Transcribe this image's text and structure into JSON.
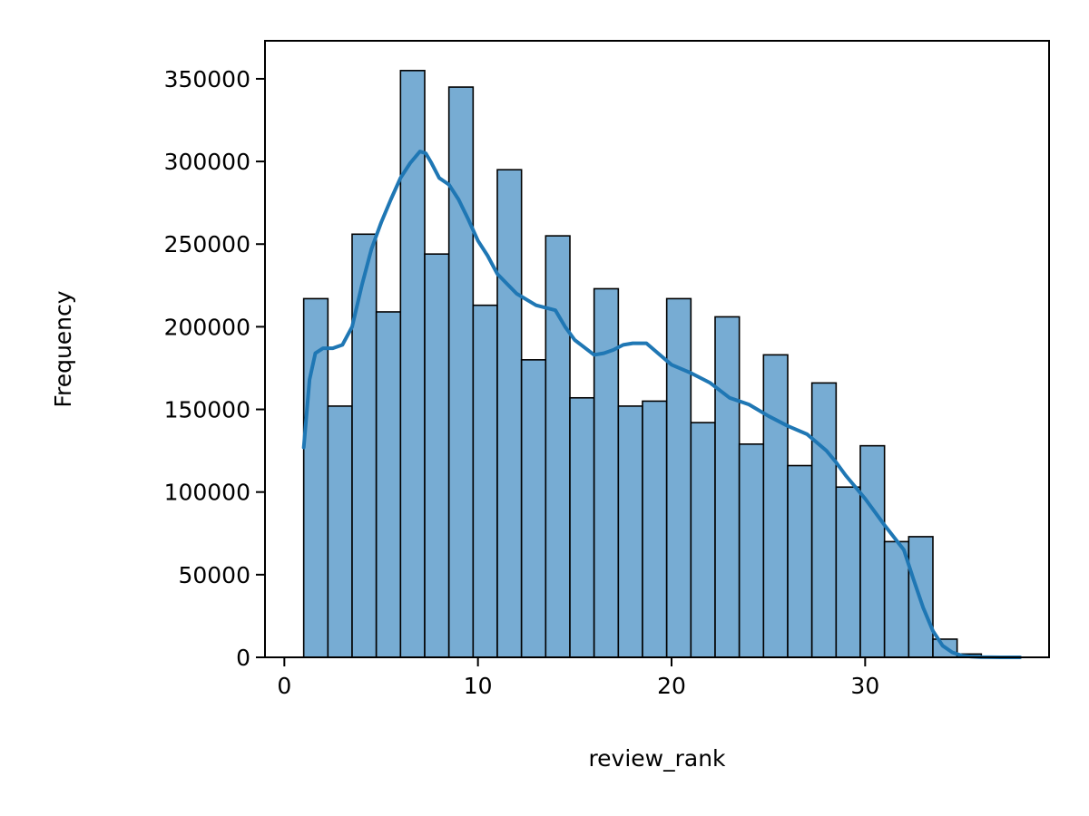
{
  "chart_data": {
    "type": "bar",
    "subtype": "histogram_with_kde",
    "title": "",
    "xlabel": "review_rank",
    "ylabel": "Frequency",
    "xlim": [
      -1,
      39.5
    ],
    "ylim": [
      0,
      373000
    ],
    "xticks": [
      0,
      10,
      20,
      30
    ],
    "yticks": [
      0,
      50000,
      100000,
      150000,
      200000,
      250000,
      300000,
      350000
    ],
    "grid": false,
    "legend": "none",
    "bar_color": "#77acd3",
    "bar_edge_color": "#000000",
    "line_color": "#1f77b4",
    "bins": [
      {
        "x0": 1.0,
        "x1": 2.25,
        "count": 217000
      },
      {
        "x0": 2.25,
        "x1": 3.5,
        "count": 152000
      },
      {
        "x0": 3.5,
        "x1": 4.75,
        "count": 256000
      },
      {
        "x0": 4.75,
        "x1": 6.0,
        "count": 209000
      },
      {
        "x0": 6.0,
        "x1": 7.25,
        "count": 355000
      },
      {
        "x0": 7.25,
        "x1": 8.5,
        "count": 244000
      },
      {
        "x0": 8.5,
        "x1": 9.75,
        "count": 345000
      },
      {
        "x0": 9.75,
        "x1": 11.0,
        "count": 213000
      },
      {
        "x0": 11.0,
        "x1": 12.25,
        "count": 295000
      },
      {
        "x0": 12.25,
        "x1": 13.5,
        "count": 180000
      },
      {
        "x0": 13.5,
        "x1": 14.75,
        "count": 255000
      },
      {
        "x0": 14.75,
        "x1": 16.0,
        "count": 157000
      },
      {
        "x0": 16.0,
        "x1": 17.25,
        "count": 223000
      },
      {
        "x0": 17.25,
        "x1": 18.5,
        "count": 152000
      },
      {
        "x0": 18.5,
        "x1": 19.75,
        "count": 155000
      },
      {
        "x0": 19.75,
        "x1": 21.0,
        "count": 217000
      },
      {
        "x0": 21.0,
        "x1": 22.25,
        "count": 142000
      },
      {
        "x0": 22.25,
        "x1": 23.5,
        "count": 206000
      },
      {
        "x0": 23.5,
        "x1": 24.75,
        "count": 129000
      },
      {
        "x0": 24.75,
        "x1": 26.0,
        "count": 183000
      },
      {
        "x0": 26.0,
        "x1": 27.25,
        "count": 116000
      },
      {
        "x0": 27.25,
        "x1": 28.5,
        "count": 166000
      },
      {
        "x0": 28.5,
        "x1": 29.75,
        "count": 103000
      },
      {
        "x0": 29.75,
        "x1": 31.0,
        "count": 128000
      },
      {
        "x0": 31.0,
        "x1": 32.25,
        "count": 70000
      },
      {
        "x0": 32.25,
        "x1": 33.5,
        "count": 73000
      },
      {
        "x0": 33.5,
        "x1": 34.75,
        "count": 11000
      },
      {
        "x0": 34.75,
        "x1": 36.0,
        "count": 2000
      },
      {
        "x0": 36.0,
        "x1": 37.25,
        "count": 500
      },
      {
        "x0": 37.25,
        "x1": 38.0,
        "count": 200
      }
    ],
    "kde": {
      "x": [
        1.0,
        1.3,
        1.6,
        2.0,
        2.5,
        3.0,
        3.5,
        4.0,
        4.5,
        5.0,
        5.5,
        6.0,
        6.5,
        7.0,
        7.3,
        7.6,
        8.0,
        8.5,
        9.0,
        9.5,
        10.0,
        10.5,
        11.0,
        12.0,
        13.0,
        14.0,
        14.5,
        15.0,
        16.0,
        16.5,
        17.0,
        17.5,
        18.0,
        18.7,
        19.3,
        20.0,
        21.0,
        22.0,
        23.0,
        24.0,
        25.0,
        26.0,
        27.0,
        28.0,
        28.5,
        29.0,
        30.0,
        31.0,
        32.0,
        32.5,
        33.0,
        33.5,
        34.0,
        34.5,
        35.0,
        35.5,
        36.0,
        37.0,
        38.0
      ],
      "y": [
        127000,
        168000,
        184000,
        187000,
        187000,
        189000,
        200000,
        225000,
        247000,
        263000,
        277000,
        290000,
        299000,
        306000,
        305000,
        299000,
        290000,
        286000,
        277000,
        265000,
        252000,
        243000,
        232000,
        220000,
        213000,
        210000,
        200000,
        192000,
        183000,
        184000,
        186000,
        189000,
        190000,
        190000,
        184000,
        177000,
        172000,
        166000,
        157000,
        153000,
        146000,
        140000,
        135000,
        125000,
        118000,
        110000,
        96000,
        80000,
        65000,
        47000,
        30000,
        16000,
        7000,
        3000,
        1000,
        400,
        150,
        0,
        0
      ]
    }
  }
}
